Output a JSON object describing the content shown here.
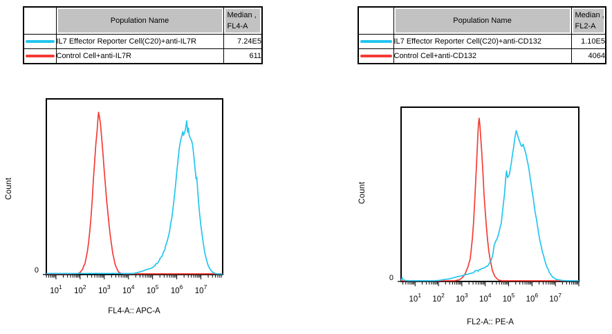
{
  "colors": {
    "cyan": "#22c5f0",
    "red": "#f43b35",
    "header_bg": "#c2c2c2",
    "frame": "#000000"
  },
  "legend_tables": [
    {
      "population_header": "Population Name",
      "median_header": [
        "Median ,",
        "FL4-A"
      ]
    },
    {
      "population_header": "Population Name",
      "median_header": [
        "Median ,",
        "FL2-A"
      ]
    }
  ],
  "chart_data": [
    {
      "type": "line",
      "subtype": "flow-histogram",
      "xlabel": "FL4-A:: APC-A",
      "ylabel": "Count",
      "xscale": "log",
      "xlim_log10": [
        0.6,
        7.9
      ],
      "ylim": [
        0,
        1
      ],
      "x_tick_exponents": [
        1,
        2,
        3,
        4,
        5,
        6,
        7
      ],
      "y_tick_labels": [
        "0"
      ],
      "grid": false,
      "legend_position": "table-top",
      "series": [
        {
          "name": "IL7 Effector Reporter Cell(C20)+anti-IL7R",
          "color_key": "cyan",
          "median": "7.24E5",
          "points_log10x_yfrac": [
            [
              0.6,
              0.006
            ],
            [
              4.2,
              0.006
            ],
            [
              4.4,
              0.012
            ],
            [
              4.6,
              0.02
            ],
            [
              4.8,
              0.03
            ],
            [
              5.0,
              0.04
            ],
            [
              5.1,
              0.05
            ],
            [
              5.2,
              0.065
            ],
            [
              5.3,
              0.085
            ],
            [
              5.4,
              0.11
            ],
            [
              5.5,
              0.14
            ],
            [
              5.6,
              0.19
            ],
            [
              5.7,
              0.25
            ],
            [
              5.8,
              0.33
            ],
            [
              5.85,
              0.38
            ],
            [
              5.9,
              0.44
            ],
            [
              5.95,
              0.51
            ],
            [
              6.0,
              0.58
            ],
            [
              6.05,
              0.65
            ],
            [
              6.1,
              0.71
            ],
            [
              6.15,
              0.76
            ],
            [
              6.2,
              0.79
            ],
            [
              6.25,
              0.81
            ],
            [
              6.28,
              0.79
            ],
            [
              6.32,
              0.81
            ],
            [
              6.36,
              0.83
            ],
            [
              6.41,
              0.875
            ],
            [
              6.45,
              0.81
            ],
            [
              6.48,
              0.83
            ],
            [
              6.52,
              0.79
            ],
            [
              6.56,
              0.775
            ],
            [
              6.6,
              0.77
            ],
            [
              6.65,
              0.74
            ],
            [
              6.7,
              0.68
            ],
            [
              6.75,
              0.61
            ],
            [
              6.8,
              0.54
            ],
            [
              6.83,
              0.55
            ],
            [
              6.87,
              0.47
            ],
            [
              6.9,
              0.41
            ],
            [
              6.95,
              0.34
            ],
            [
              7.0,
              0.28
            ],
            [
              7.05,
              0.22
            ],
            [
              7.1,
              0.17
            ],
            [
              7.15,
              0.13
            ],
            [
              7.2,
              0.1
            ],
            [
              7.3,
              0.05
            ],
            [
              7.4,
              0.025
            ],
            [
              7.5,
              0.012
            ],
            [
              7.6,
              0.006
            ],
            [
              7.7,
              0.003
            ],
            [
              7.9,
              0.002
            ]
          ]
        },
        {
          "name": "Control Cell+anti-IL7R",
          "color_key": "red",
          "median": "611",
          "points_log10x_yfrac": [
            [
              0.6,
              0.004
            ],
            [
              1.5,
              0.004
            ],
            [
              1.9,
              0.005
            ],
            [
              2.0,
              0.012
            ],
            [
              2.1,
              0.03
            ],
            [
              2.2,
              0.065
            ],
            [
              2.3,
              0.13
            ],
            [
              2.35,
              0.18
            ],
            [
              2.4,
              0.25
            ],
            [
              2.45,
              0.33
            ],
            [
              2.5,
              0.43
            ],
            [
              2.55,
              0.54
            ],
            [
              2.6,
              0.64
            ],
            [
              2.65,
              0.74
            ],
            [
              2.7,
              0.82
            ],
            [
              2.73,
              0.87
            ],
            [
              2.76,
              0.92
            ],
            [
              2.8,
              0.9
            ],
            [
              2.84,
              0.86
            ],
            [
              2.88,
              0.8
            ],
            [
              2.92,
              0.73
            ],
            [
              2.96,
              0.66
            ],
            [
              3.0,
              0.59
            ],
            [
              3.05,
              0.5
            ],
            [
              3.1,
              0.42
            ],
            [
              3.15,
              0.35
            ],
            [
              3.2,
              0.28
            ],
            [
              3.25,
              0.22
            ],
            [
              3.3,
              0.165
            ],
            [
              3.35,
              0.12
            ],
            [
              3.4,
              0.085
            ],
            [
              3.45,
              0.06
            ],
            [
              3.5,
              0.04
            ],
            [
              3.55,
              0.025
            ],
            [
              3.6,
              0.013
            ],
            [
              3.7,
              0.006
            ],
            [
              3.8,
              0.004
            ],
            [
              7.9,
              0.004
            ]
          ]
        }
      ]
    },
    {
      "type": "line",
      "subtype": "flow-histogram",
      "xlabel": "FL2-A:: PE-A",
      "ylabel": "Count",
      "xscale": "log",
      "xlim_log10": [
        0.4,
        8.0
      ],
      "ylim": [
        0,
        1
      ],
      "x_tick_exponents": [
        1,
        2,
        3,
        4,
        5,
        6,
        7
      ],
      "y_tick_labels": [
        "0"
      ],
      "grid": false,
      "legend_position": "table-top",
      "series": [
        {
          "name": "IL7 Effector Reporter Cell(C20)+anti-CD132",
          "color_key": "cyan",
          "median": "1.10E5",
          "points_log10x_yfrac": [
            [
              0.4,
              0.005
            ],
            [
              0.44,
              0.022
            ],
            [
              0.5,
              0.008
            ],
            [
              0.7,
              0.004
            ],
            [
              1.8,
              0.004
            ],
            [
              2.0,
              0.006
            ],
            [
              2.2,
              0.01
            ],
            [
              2.47,
              0.015
            ],
            [
              2.76,
              0.025
            ],
            [
              3.06,
              0.035
            ],
            [
              3.35,
              0.045
            ],
            [
              3.65,
              0.06
            ],
            [
              3.94,
              0.08
            ],
            [
              4.09,
              0.09
            ],
            [
              4.24,
              0.12
            ],
            [
              4.32,
              0.15
            ],
            [
              4.38,
              0.21
            ],
            [
              4.45,
              0.23
            ],
            [
              4.53,
              0.25
            ],
            [
              4.6,
              0.29
            ],
            [
              4.68,
              0.33
            ],
            [
              4.75,
              0.41
            ],
            [
              4.82,
              0.5
            ],
            [
              4.88,
              0.6
            ],
            [
              4.91,
              0.635
            ],
            [
              4.95,
              0.6
            ],
            [
              5.03,
              0.615
            ],
            [
              5.08,
              0.65
            ],
            [
              5.12,
              0.68
            ],
            [
              5.21,
              0.77
            ],
            [
              5.26,
              0.82
            ],
            [
              5.32,
              0.861
            ],
            [
              5.41,
              0.83
            ],
            [
              5.47,
              0.8
            ],
            [
              5.56,
              0.77
            ],
            [
              5.62,
              0.79
            ],
            [
              5.71,
              0.75
            ],
            [
              5.79,
              0.7
            ],
            [
              5.88,
              0.63
            ],
            [
              6.0,
              0.52
            ],
            [
              6.09,
              0.44
            ],
            [
              6.18,
              0.36
            ],
            [
              6.29,
              0.27
            ],
            [
              6.44,
              0.17
            ],
            [
              6.59,
              0.1
            ],
            [
              6.74,
              0.05
            ],
            [
              6.88,
              0.025
            ],
            [
              7.03,
              0.012
            ],
            [
              7.32,
              0.005
            ],
            [
              8.0,
              0.003
            ]
          ]
        },
        {
          "name": "Control Cell+anti-CD132",
          "color_key": "red",
          "median": "4064",
          "points_log10x_yfrac": [
            [
              0.4,
              0.004
            ],
            [
              2.7,
              0.004
            ],
            [
              2.9,
              0.01
            ],
            [
              3.0,
              0.02
            ],
            [
              3.1,
              0.035
            ],
            [
              3.2,
              0.06
            ],
            [
              3.3,
              0.1
            ],
            [
              3.35,
              0.13
            ],
            [
              3.4,
              0.18
            ],
            [
              3.45,
              0.25
            ],
            [
              3.5,
              0.34
            ],
            [
              3.55,
              0.46
            ],
            [
              3.6,
              0.6
            ],
            [
              3.65,
              0.74
            ],
            [
              3.68,
              0.83
            ],
            [
              3.71,
              0.9
            ],
            [
              3.74,
              0.94
            ],
            [
              3.77,
              0.9
            ],
            [
              3.8,
              0.84
            ],
            [
              3.85,
              0.74
            ],
            [
              3.9,
              0.62
            ],
            [
              3.95,
              0.5
            ],
            [
              4.0,
              0.4
            ],
            [
              4.05,
              0.31
            ],
            [
              4.1,
              0.24
            ],
            [
              4.15,
              0.18
            ],
            [
              4.2,
              0.13
            ],
            [
              4.3,
              0.065
            ],
            [
              4.4,
              0.03
            ],
            [
              4.5,
              0.015
            ],
            [
              4.6,
              0.007
            ],
            [
              4.7,
              0.004
            ],
            [
              8.0,
              0.004
            ]
          ]
        }
      ]
    }
  ]
}
